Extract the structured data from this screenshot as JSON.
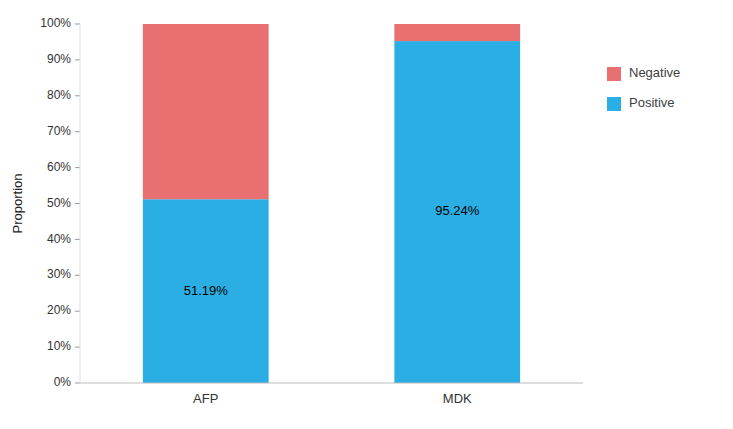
{
  "chart_data": {
    "type": "bar",
    "stacked": true,
    "categories": [
      "AFP",
      "MDK"
    ],
    "y_label": "Proportion",
    "series": [
      {
        "name": "Positive",
        "color": "#2BAEE3",
        "values": [
          51.19,
          95.24
        ],
        "value_labels": [
          "51.19%",
          "95.24%"
        ]
      },
      {
        "name": "Negative",
        "color": "#E87070",
        "values": [
          48.81,
          4.76
        ]
      }
    ],
    "ylim": [
      0,
      100
    ],
    "yticks": [
      {
        "value": 0,
        "label": "0%"
      },
      {
        "value": 10,
        "label": "10%"
      },
      {
        "value": 20,
        "label": "20%"
      },
      {
        "value": 30,
        "label": "30%"
      },
      {
        "value": 40,
        "label": "40%"
      },
      {
        "value": 50,
        "label": "50%"
      },
      {
        "value": 60,
        "label": "60%"
      },
      {
        "value": 70,
        "label": "70%"
      },
      {
        "value": 80,
        "label": "80%"
      },
      {
        "value": 90,
        "label": "90%"
      },
      {
        "value": 100,
        "label": "100%"
      }
    ],
    "data_labels": true,
    "grid": false,
    "legend": "right"
  }
}
